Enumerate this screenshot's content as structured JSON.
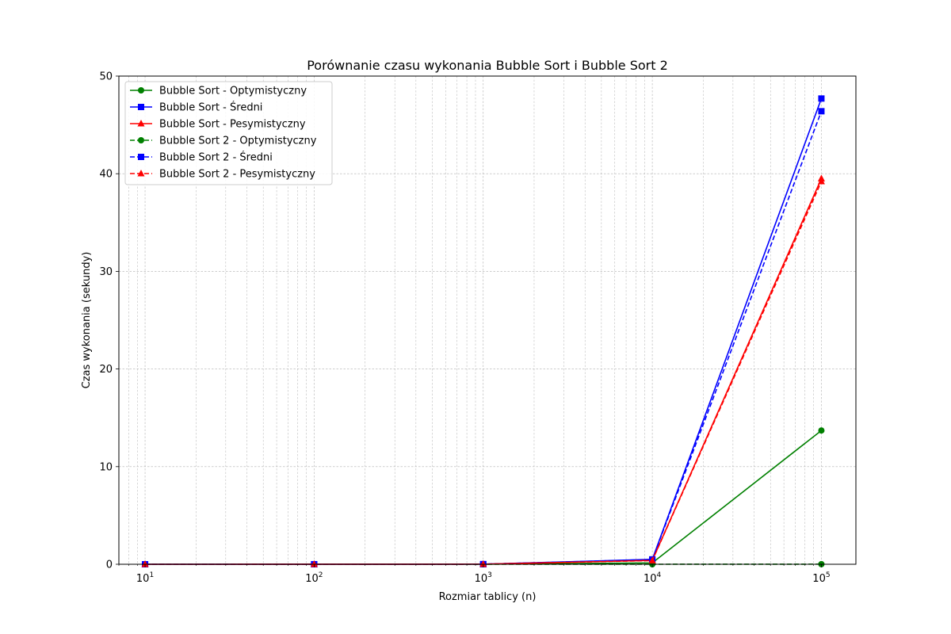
{
  "chart_data": {
    "type": "line",
    "title": "Porównanie czasu wykonania Bubble Sort i Bubble Sort 2",
    "xlabel": "Rozmiar tablicy (n)",
    "ylabel": "Czas wykonania (sekundy)",
    "x_scale": "log",
    "xlim": [
      7,
      160000
    ],
    "ylim": [
      0,
      50
    ],
    "x": [
      10,
      100,
      1000,
      10000,
      100000
    ],
    "x_ticks": [
      {
        "value": 10,
        "base": "10",
        "exp": "1"
      },
      {
        "value": 100,
        "base": "10",
        "exp": "2"
      },
      {
        "value": 1000,
        "base": "10",
        "exp": "3"
      },
      {
        "value": 10000,
        "base": "10",
        "exp": "4"
      },
      {
        "value": 100000,
        "base": "10",
        "exp": "5"
      }
    ],
    "y_ticks": [
      0,
      10,
      20,
      30,
      40,
      50
    ],
    "grid": true,
    "legend_position": "top-left",
    "series": [
      {
        "name": "Bubble Sort - Optymistyczny",
        "values": [
          0.0,
          0.001,
          0.005,
          0.14,
          13.7
        ],
        "color": "#008000",
        "marker": "circle",
        "dash": false
      },
      {
        "name": "Bubble Sort - Średni",
        "values": [
          0.0,
          0.002,
          0.01,
          0.5,
          47.7
        ],
        "color": "#0000ff",
        "marker": "square",
        "dash": false
      },
      {
        "name": "Bubble Sort - Pesymistyczny",
        "values": [
          0.0,
          0.002,
          0.01,
          0.4,
          39.5
        ],
        "color": "#ff0000",
        "marker": "triangle",
        "dash": false
      },
      {
        "name": "Bubble Sort 2 - Optymistyczny",
        "values": [
          0.0,
          0.0,
          0.0,
          0.0,
          0.01
        ],
        "color": "#008000",
        "marker": "circle",
        "dash": true
      },
      {
        "name": "Bubble Sort 2 - Średni",
        "values": [
          0.0,
          0.002,
          0.01,
          0.48,
          46.4
        ],
        "color": "#0000ff",
        "marker": "square",
        "dash": true
      },
      {
        "name": "Bubble Sort 2 - Pesymistyczny",
        "values": [
          0.0,
          0.002,
          0.01,
          0.38,
          39.2
        ],
        "color": "#ff0000",
        "marker": "triangle",
        "dash": true
      }
    ]
  }
}
